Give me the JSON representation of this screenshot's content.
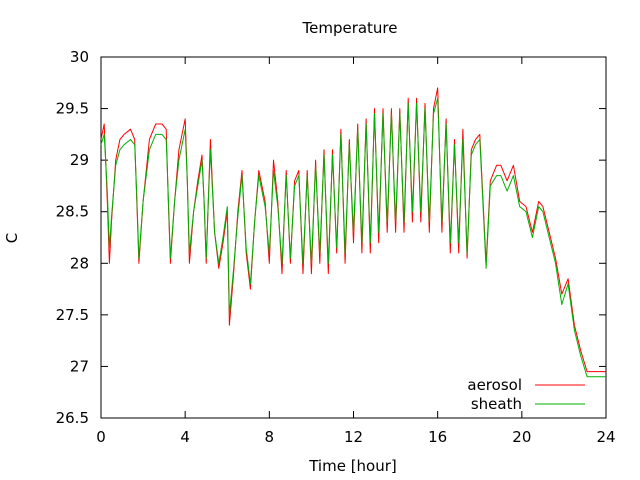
{
  "chart_data": {
    "type": "line",
    "title": "Temperature",
    "xlabel": "Time [hour]",
    "ylabel": "C",
    "xlim": [
      0,
      24
    ],
    "ylim": [
      26.5,
      30
    ],
    "xticks": [
      0,
      4,
      8,
      12,
      16,
      20,
      24
    ],
    "yticks": [
      26.5,
      27,
      27.5,
      28,
      28.5,
      29,
      29.5,
      30
    ],
    "ytick_labels": [
      "26.5",
      "27",
      "27.5",
      "28",
      "28.5",
      "29",
      "29.5",
      "30"
    ],
    "grid": false,
    "legend_position": "bottom-right",
    "series": [
      {
        "name": "aerosol",
        "color": "#ff0000",
        "x": [
          0,
          0.15,
          0.3,
          0.4,
          0.5,
          0.7,
          0.9,
          1.1,
          1.4,
          1.6,
          1.7,
          1.8,
          2.0,
          2.3,
          2.6,
          2.9,
          3.1,
          3.2,
          3.3,
          3.5,
          3.7,
          3.9,
          4.0,
          4.1,
          4.2,
          4.4,
          4.6,
          4.8,
          4.9,
          5.0,
          5.1,
          5.2,
          5.4,
          5.6,
          5.8,
          6.0,
          6.1,
          6.3,
          6.5,
          6.7,
          6.9,
          7.1,
          7.3,
          7.5,
          7.8,
          8.0,
          8.2,
          8.4,
          8.6,
          8.8,
          9.0,
          9.2,
          9.4,
          9.6,
          9.8,
          10.0,
          10.2,
          10.4,
          10.6,
          10.8,
          11.0,
          11.2,
          11.4,
          11.6,
          11.8,
          12.0,
          12.2,
          12.4,
          12.6,
          12.8,
          13.0,
          13.2,
          13.4,
          13.6,
          13.8,
          14.0,
          14.2,
          14.4,
          14.6,
          14.8,
          15.0,
          15.2,
          15.4,
          15.6,
          15.8,
          16.0,
          16.2,
          16.4,
          16.6,
          16.8,
          17.0,
          17.2,
          17.4,
          17.6,
          17.8,
          18.0,
          18.3,
          18.5,
          18.8,
          19.0,
          19.3,
          19.6,
          19.9,
          20.2,
          20.5,
          20.8,
          21.0,
          21.3,
          21.6,
          21.9,
          22.2,
          22.5,
          22.8,
          23.1,
          23.4,
          23.7,
          24.0
        ],
        "values": [
          29.2,
          29.35,
          28.6,
          28.0,
          28.4,
          29.0,
          29.2,
          29.25,
          29.3,
          29.2,
          28.6,
          28.0,
          28.6,
          29.2,
          29.35,
          29.35,
          29.3,
          28.6,
          28.0,
          28.6,
          29.1,
          29.3,
          29.4,
          28.8,
          28.0,
          28.5,
          28.8,
          29.05,
          28.6,
          28.0,
          28.6,
          29.2,
          28.3,
          27.95,
          28.2,
          28.5,
          27.4,
          27.9,
          28.5,
          28.9,
          28.1,
          27.75,
          28.4,
          28.9,
          28.6,
          28.0,
          29.0,
          28.6,
          27.9,
          28.9,
          28.0,
          28.8,
          28.9,
          27.9,
          28.9,
          27.9,
          29.0,
          28.0,
          29.1,
          27.9,
          29.1,
          28.1,
          29.3,
          28.0,
          29.2,
          28.2,
          29.35,
          28.1,
          29.4,
          28.1,
          29.5,
          28.2,
          29.5,
          28.3,
          29.5,
          28.3,
          29.5,
          28.3,
          29.6,
          28.4,
          29.6,
          28.4,
          29.55,
          28.3,
          29.5,
          29.7,
          28.3,
          29.4,
          28.1,
          29.2,
          28.1,
          29.3,
          28.05,
          29.1,
          29.2,
          29.25,
          28.0,
          28.8,
          28.95,
          28.95,
          28.8,
          28.95,
          28.6,
          28.55,
          28.3,
          28.6,
          28.55,
          28.3,
          28.05,
          27.7,
          27.85,
          27.4,
          27.15,
          26.95,
          26.95,
          26.95,
          26.95
        ]
      },
      {
        "name": "sheath",
        "color": "#00b000",
        "x": [
          0,
          0.15,
          0.3,
          0.4,
          0.5,
          0.7,
          0.9,
          1.1,
          1.4,
          1.6,
          1.7,
          1.8,
          2.0,
          2.3,
          2.6,
          2.9,
          3.1,
          3.2,
          3.3,
          3.5,
          3.7,
          3.9,
          4.0,
          4.1,
          4.2,
          4.4,
          4.6,
          4.8,
          4.9,
          5.0,
          5.1,
          5.2,
          5.4,
          5.6,
          5.8,
          6.0,
          6.1,
          6.3,
          6.5,
          6.7,
          6.9,
          7.1,
          7.3,
          7.5,
          7.8,
          8.0,
          8.2,
          8.4,
          8.6,
          8.8,
          9.0,
          9.2,
          9.4,
          9.6,
          9.8,
          10.0,
          10.2,
          10.4,
          10.6,
          10.8,
          11.0,
          11.2,
          11.4,
          11.6,
          11.8,
          12.0,
          12.2,
          12.4,
          12.6,
          12.8,
          13.0,
          13.2,
          13.4,
          13.6,
          13.8,
          14.0,
          14.2,
          14.4,
          14.6,
          14.8,
          15.0,
          15.2,
          15.4,
          15.6,
          15.8,
          16.0,
          16.2,
          16.4,
          16.6,
          16.8,
          17.0,
          17.2,
          17.4,
          17.6,
          17.8,
          18.0,
          18.3,
          18.5,
          18.8,
          19.0,
          19.3,
          19.6,
          19.9,
          20.2,
          20.5,
          20.8,
          21.0,
          21.3,
          21.6,
          21.9,
          22.2,
          22.5,
          22.8,
          23.1,
          23.4,
          23.7,
          24.0
        ],
        "values": [
          29.15,
          29.25,
          28.7,
          28.15,
          28.45,
          28.95,
          29.1,
          29.15,
          29.2,
          29.15,
          28.65,
          28.05,
          28.6,
          29.1,
          29.25,
          29.25,
          29.2,
          28.65,
          28.05,
          28.6,
          29.0,
          29.2,
          29.3,
          28.8,
          28.1,
          28.5,
          28.75,
          29.0,
          28.6,
          28.05,
          28.6,
          29.1,
          28.3,
          28.0,
          28.25,
          28.55,
          27.5,
          27.95,
          28.45,
          28.85,
          28.15,
          27.8,
          28.4,
          28.85,
          28.55,
          28.1,
          28.9,
          28.55,
          28.0,
          28.85,
          28.05,
          28.75,
          28.85,
          28.0,
          28.85,
          28.0,
          28.95,
          28.1,
          29.05,
          28.0,
          29.05,
          28.15,
          29.25,
          28.1,
          29.15,
          28.3,
          29.3,
          28.2,
          29.35,
          28.2,
          29.45,
          28.3,
          29.45,
          28.4,
          29.45,
          28.4,
          29.45,
          28.4,
          29.55,
          28.5,
          29.55,
          28.5,
          29.5,
          28.4,
          29.45,
          29.6,
          28.4,
          29.35,
          28.2,
          29.15,
          28.2,
          29.2,
          28.1,
          29.05,
          29.15,
          29.2,
          27.95,
          28.75,
          28.85,
          28.85,
          28.7,
          28.85,
          28.55,
          28.5,
          28.25,
          28.55,
          28.5,
          28.25,
          28.0,
          27.6,
          27.8,
          27.35,
          27.1,
          26.9,
          26.9,
          26.9,
          26.9
        ]
      }
    ]
  }
}
